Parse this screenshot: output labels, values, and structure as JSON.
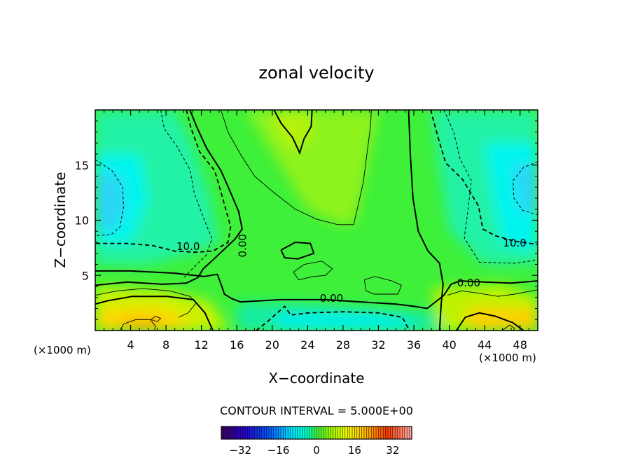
{
  "chart_data": {
    "type": "heatmap",
    "title": "zonal velocity",
    "xlabel": "X−coordinate",
    "ylabel": "Z−coordinate",
    "x_unit_left": "(×1000 m)",
    "x_unit_right": "(×1000 m)",
    "xlim": [
      0,
      50
    ],
    "ylim": [
      0,
      20
    ],
    "x_ticks": [
      4,
      8,
      12,
      16,
      20,
      24,
      28,
      32,
      36,
      40,
      44,
      48
    ],
    "x_tick_labels": [
      "4",
      "8",
      "12",
      "16",
      "20",
      "24",
      "28",
      "32",
      "36",
      "40",
      "44",
      "48"
    ],
    "y_ticks": [
      5,
      10,
      15
    ],
    "y_tick_labels": [
      "5",
      "10",
      "15"
    ],
    "contour_interval_text": "CONTOUR INTERVAL = 5.000E+00",
    "contour_labels": [
      {
        "text": "10.0",
        "x": 10.5,
        "z": 7.6
      },
      {
        "text": "0.00",
        "x": 16.7,
        "z": 7.7,
        "rotate": -90
      },
      {
        "text": "0.00",
        "x": 26.7,
        "z": 2.9
      },
      {
        "text": "0.00",
        "x": 42.2,
        "z": 4.3
      },
      {
        "text": "10.0",
        "x": 47.4,
        "z": 7.9
      }
    ],
    "colorbar": {
      "min": -40,
      "max": 40,
      "ticks": [
        -32,
        -16,
        0,
        16,
        32
      ],
      "tick_labels": [
        "−32",
        "−16",
        "0",
        "16",
        "32"
      ]
    }
  }
}
